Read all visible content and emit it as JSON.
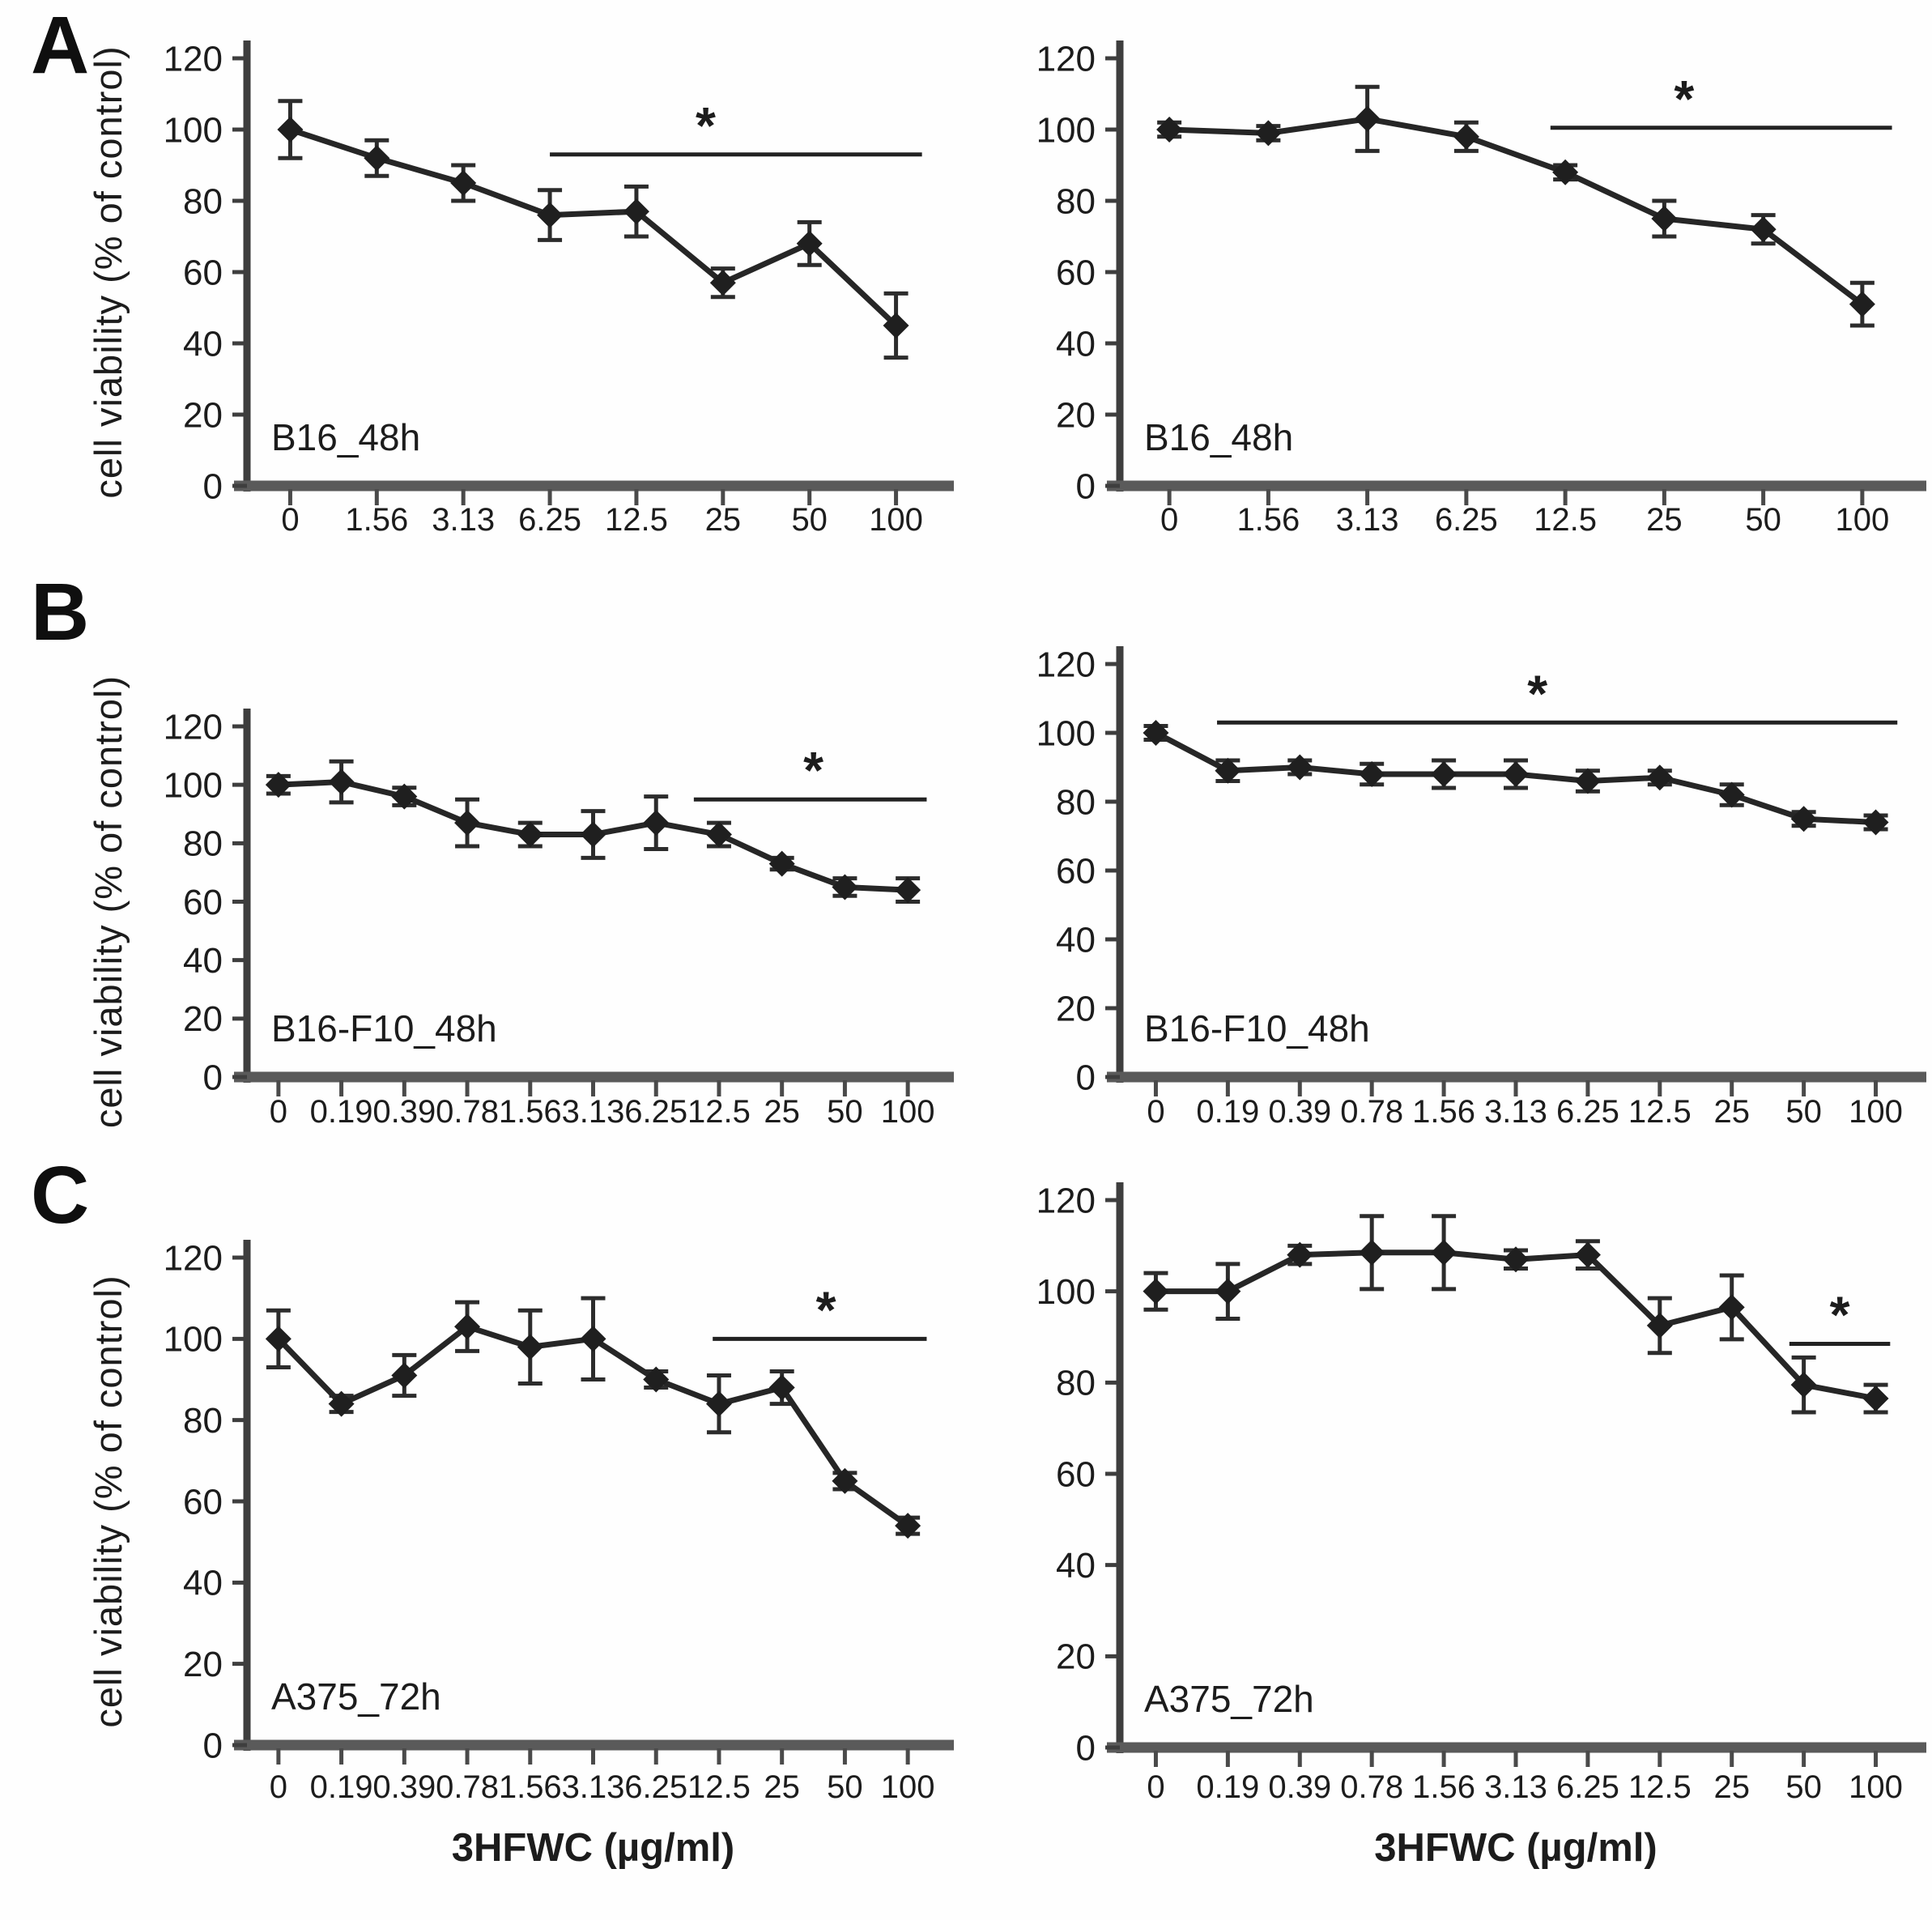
{
  "figure": {
    "xlabel": "3HFWC (µg/ml)",
    "ylabel": "cell viability (% of control)",
    "significance_symbol": "*"
  },
  "panels": [
    {
      "letter": "A"
    },
    {
      "letter": "B"
    },
    {
      "letter": "C"
    }
  ],
  "chart_data": [
    {
      "type": "line",
      "panel": "A",
      "position": "left",
      "label": "B16_48h",
      "xlabel": "",
      "ylabel": "cell viability (% of control)",
      "categories": [
        "0",
        "1.56",
        "3.13",
        "6.25",
        "12.5",
        "25",
        "50",
        "100"
      ],
      "series": [
        {
          "name": "3HFWC",
          "values": [
            100,
            92,
            85,
            76,
            77,
            57,
            68,
            45
          ],
          "errors": [
            8,
            5,
            5,
            7,
            7,
            4,
            6,
            9
          ]
        }
      ],
      "ylim": [
        0,
        120
      ],
      "yticks": [
        0,
        20,
        40,
        60,
        80,
        100,
        120
      ],
      "grid": false,
      "legend": "none",
      "marker": "diamond",
      "error_bars": true,
      "significance": {
        "from_index": 3.0,
        "to_index": 7.3,
        "y": 93,
        "star_index": 4.8,
        "symbol": "*"
      }
    },
    {
      "type": "line",
      "panel": "A",
      "position": "right",
      "label": "B16_48h",
      "xlabel": "",
      "ylabel": "cell viability (% of control)",
      "categories": [
        "0",
        "1.56",
        "3.13",
        "6.25",
        "12.5",
        "25",
        "50",
        "100"
      ],
      "series": [
        {
          "name": "3HFWC",
          "values": [
            100,
            99,
            103,
            98,
            88,
            75,
            72,
            51
          ],
          "errors": [
            2,
            2,
            9,
            4,
            2,
            5,
            4,
            6
          ]
        }
      ],
      "ylim": [
        0,
        120
      ],
      "yticks": [
        0,
        20,
        40,
        60,
        80,
        100,
        120
      ],
      "grid": false,
      "legend": "none",
      "marker": "diamond",
      "error_bars": true,
      "significance": {
        "from_index": 3.85,
        "to_index": 7.3,
        "y": 100.5,
        "star_index": 5.2,
        "symbol": "*"
      }
    },
    {
      "type": "line",
      "panel": "B",
      "position": "left",
      "label": "B16-F10_48h",
      "xlabel": "",
      "ylabel": "cell viability (% of control)",
      "categories": [
        "0",
        "0.19",
        "0.39",
        "0.78",
        "1.56",
        "3.13",
        "6.25",
        "12.5",
        "25",
        "50",
        "100"
      ],
      "series": [
        {
          "name": "3HFWC",
          "values": [
            100,
            101,
            96,
            87,
            83,
            83,
            87,
            83,
            73,
            65,
            64
          ],
          "errors": [
            3,
            7,
            3,
            8,
            4,
            8,
            9,
            4,
            2,
            3,
            4
          ]
        }
      ],
      "ylim": [
        0,
        120
      ],
      "yticks": [
        0,
        20,
        40,
        60,
        80,
        100,
        120
      ],
      "grid": false,
      "legend": "none",
      "marker": "diamond",
      "error_bars": true,
      "significance": {
        "from_index": 6.6,
        "to_index": 10.3,
        "y": 95,
        "star_index": 8.5,
        "symbol": "*"
      }
    },
    {
      "type": "line",
      "panel": "B",
      "position": "right",
      "label": "B16-F10_48h",
      "xlabel": "",
      "ylabel": "cell viability (% of control)",
      "categories": [
        "0",
        "0.19",
        "0.39",
        "0.78",
        "1.56",
        "3.13",
        "6.25",
        "12.5",
        "25",
        "50",
        "100"
      ],
      "series": [
        {
          "name": "3HFWC",
          "values": [
            100,
            89,
            90,
            88,
            88,
            88,
            86,
            87,
            82,
            75,
            74
          ],
          "errors": [
            2,
            3,
            2,
            3,
            4,
            4,
            3,
            2,
            3,
            2,
            2
          ]
        }
      ],
      "ylim": [
        0,
        120
      ],
      "yticks": [
        0,
        20,
        40,
        60,
        80,
        100,
        120
      ],
      "grid": false,
      "legend": "none",
      "marker": "diamond",
      "error_bars": true,
      "significance": {
        "from_index": 0.85,
        "to_index": 10.3,
        "y": 103,
        "star_index": 5.3,
        "symbol": "*"
      }
    },
    {
      "type": "line",
      "panel": "C",
      "position": "left",
      "label": "A375_72h",
      "xlabel": "3HFWC (µg/ml)",
      "ylabel": "cell viability (% of control)",
      "categories": [
        "0",
        "0.19",
        "0.39",
        "0.78",
        "1.56",
        "3.13",
        "6.25",
        "12.5",
        "25",
        "50",
        "100"
      ],
      "series": [
        {
          "name": "3HFWC",
          "values": [
            100,
            84,
            91,
            103,
            98,
            100,
            90,
            84,
            88,
            65,
            54
          ],
          "errors": [
            7,
            2,
            5,
            6,
            9,
            10,
            2,
            7,
            4,
            2,
            2
          ]
        }
      ],
      "ylim": [
        0,
        120
      ],
      "yticks": [
        0,
        20,
        40,
        60,
        80,
        100,
        120
      ],
      "grid": false,
      "legend": "none",
      "marker": "diamond",
      "error_bars": true,
      "significance": {
        "from_index": 6.9,
        "to_index": 10.3,
        "y": 100,
        "star_index": 8.7,
        "symbol": "*"
      }
    },
    {
      "type": "line",
      "panel": "C",
      "position": "right",
      "label": "A375_72h",
      "xlabel": "3HFWC (µg/ml)",
      "ylabel": "cell viability (% of control)",
      "categories": [
        "0",
        "0.19",
        "0.39",
        "0.78",
        "1.56",
        "3.13",
        "6.25",
        "12.5",
        "25",
        "50",
        "100"
      ],
      "series": [
        {
          "name": "3HFWC",
          "values": [
            100,
            100,
            108,
            108.5,
            108.5,
            107,
            108,
            92.5,
            96.5,
            79.5,
            76.5
          ],
          "errors": [
            4,
            6,
            2,
            8,
            8,
            2,
            3,
            6,
            7,
            6,
            3
          ]
        }
      ],
      "ylim": [
        0,
        120
      ],
      "yticks": [
        0,
        20,
        40,
        60,
        80,
        100,
        120
      ],
      "grid": false,
      "legend": "none",
      "marker": "diamond",
      "error_bars": true,
      "significance": {
        "from_index": 8.8,
        "to_index": 10.2,
        "y": 88.5,
        "star_index": 9.5,
        "symbol": "*"
      }
    }
  ]
}
